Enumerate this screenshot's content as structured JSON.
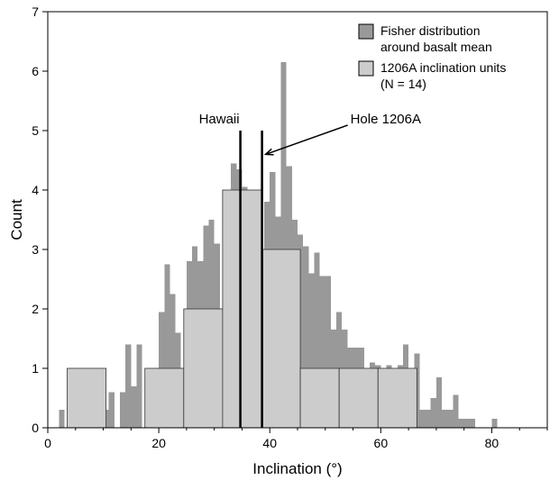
{
  "chart_data": {
    "type": "bar",
    "title": "",
    "xlabel": "Inclination (°)",
    "ylabel": "Count",
    "xlim": [
      0,
      90
    ],
    "ylim": [
      0,
      7
    ],
    "xticks": [
      0,
      20,
      40,
      60,
      80
    ],
    "yticks": [
      0,
      1,
      2,
      3,
      4,
      5,
      6,
      7
    ],
    "grid": false,
    "legend_position": "top-right",
    "series": [
      {
        "name": "Fisher distribution around basalt mean",
        "legend_lines": [
          "Fisher distribution",
          "around basalt mean"
        ],
        "color": "#999999",
        "bin_width": 1,
        "bins": [
          {
            "x": 2.5,
            "y": 0.3
          },
          {
            "x": 10.5,
            "y": 0.3
          },
          {
            "x": 11.5,
            "y": 0.6
          },
          {
            "x": 13.5,
            "y": 0.6
          },
          {
            "x": 14.5,
            "y": 1.4
          },
          {
            "x": 15.5,
            "y": 0.7
          },
          {
            "x": 16.5,
            "y": 1.4
          },
          {
            "x": 20.5,
            "y": 1.95
          },
          {
            "x": 21.5,
            "y": 2.75
          },
          {
            "x": 22.5,
            "y": 2.25
          },
          {
            "x": 23.5,
            "y": 1.6
          },
          {
            "x": 25.5,
            "y": 2.8
          },
          {
            "x": 26.5,
            "y": 3.05
          },
          {
            "x": 27.5,
            "y": 2.8
          },
          {
            "x": 28.5,
            "y": 3.4
          },
          {
            "x": 29.5,
            "y": 3.5
          },
          {
            "x": 30.5,
            "y": 3.1
          },
          {
            "x": 33.5,
            "y": 4.45
          },
          {
            "x": 34.5,
            "y": 4.35
          },
          {
            "x": 35.5,
            "y": 4.05
          },
          {
            "x": 39.5,
            "y": 3.8
          },
          {
            "x": 40.5,
            "y": 4.3
          },
          {
            "x": 41.5,
            "y": 3.55
          },
          {
            "x": 42.5,
            "y": 6.15
          },
          {
            "x": 43.5,
            "y": 4.4
          },
          {
            "x": 44.5,
            "y": 3.5
          },
          {
            "x": 45.5,
            "y": 3.25
          },
          {
            "x": 46.5,
            "y": 3.05
          },
          {
            "x": 47.5,
            "y": 2.6
          },
          {
            "x": 48.5,
            "y": 2.95
          },
          {
            "x": 49.5,
            "y": 2.55
          },
          {
            "x": 50.5,
            "y": 2.55
          },
          {
            "x": 51.5,
            "y": 1.65
          },
          {
            "x": 52.5,
            "y": 1.95
          },
          {
            "x": 53.5,
            "y": 1.65
          },
          {
            "x": 54.5,
            "y": 1.35
          },
          {
            "x": 55.5,
            "y": 1.35
          },
          {
            "x": 56.5,
            "y": 1.35
          },
          {
            "x": 57.5,
            "y": 1.0
          },
          {
            "x": 58.5,
            "y": 1.1
          },
          {
            "x": 59.5,
            "y": 1.05
          },
          {
            "x": 60.5,
            "y": 1.0
          },
          {
            "x": 61.5,
            "y": 1.05
          },
          {
            "x": 62.5,
            "y": 1.0
          },
          {
            "x": 63.5,
            "y": 1.05
          },
          {
            "x": 64.5,
            "y": 1.4
          },
          {
            "x": 65.5,
            "y": 1.0
          },
          {
            "x": 66.5,
            "y": 1.25
          },
          {
            "x": 67.5,
            "y": 0.3
          },
          {
            "x": 68.5,
            "y": 0.3
          },
          {
            "x": 69.5,
            "y": 0.5
          },
          {
            "x": 70.5,
            "y": 0.85
          },
          {
            "x": 71.5,
            "y": 0.3
          },
          {
            "x": 72.5,
            "y": 0.3
          },
          {
            "x": 73.5,
            "y": 0.55
          },
          {
            "x": 74.5,
            "y": 0.15
          },
          {
            "x": 75.5,
            "y": 0.15
          },
          {
            "x": 76.5,
            "y": 0.15
          },
          {
            "x": 80.5,
            "y": 0.15
          }
        ]
      },
      {
        "name": "1206A inclination units (N = 14)",
        "legend_lines": [
          "1206A inclination units",
          "(N = 14)"
        ],
        "color": "#cccccc",
        "edges": [
          3.5,
          10.5,
          17.5,
          24.5,
          31.5,
          38.5,
          45.5,
          52.5,
          59.5,
          66.5
        ],
        "values": [
          1,
          0,
          1,
          2,
          4,
          3,
          1,
          1,
          1
        ]
      }
    ],
    "reference_lines": [
      {
        "label": "Hawaii",
        "x": 34.7
      },
      {
        "label": "Hole 1206A",
        "x": 38.6
      }
    ]
  }
}
